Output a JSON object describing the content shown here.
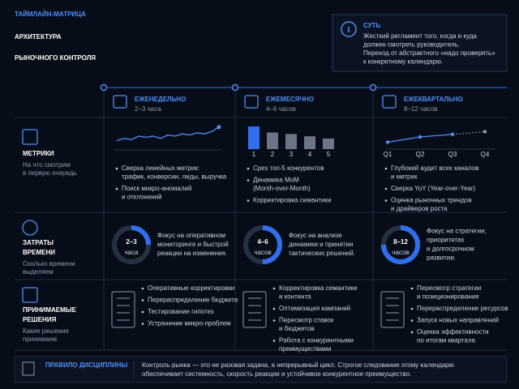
{
  "header": {
    "kicker": "ТАЙМЛАЙН-МАТРИЦА",
    "title_lines": [
      "АРХИТЕКТУРА",
      "РЫНОЧНОГО КОНТРОЛЯ"
    ]
  },
  "summary": {
    "title": "СУТЬ",
    "lines": [
      "Жесткий регламент того, когда и куда",
      "должен смотреть руководитель.",
      "Переход от абстрактного «надо проверять»",
      "к конкретному календарю."
    ]
  },
  "columns": [
    {
      "title": "ЕЖЕНЕДЕЛЬНО",
      "duration": "2–3 часа"
    },
    {
      "title": "ЕЖЕМЕСЯЧНО",
      "duration": "4–6 часов"
    },
    {
      "title": "ЕЖЕКВАРТАЛЬНО",
      "duration": "8–12 часов"
    }
  ],
  "rows": [
    {
      "title_lines": [
        "МЕТРИКИ"
      ],
      "subtitle_lines": [
        "На что смотрим",
        "в первую очередь"
      ]
    },
    {
      "title_lines": [
        "ЗАТРАТЫ",
        "ВРЕМЕНИ"
      ],
      "subtitle_lines": [
        "Сколько времени",
        "выделяем"
      ]
    },
    {
      "title_lines": [
        "ПРИНИМАЕМЫЕ",
        "РЕШЕНИЯ"
      ],
      "subtitle_lines": [
        "Какие решения",
        "принимаем"
      ]
    }
  ],
  "metrics_cells": [
    {
      "chart": {
        "type": "line",
        "values": [
          3,
          4,
          3.5,
          5,
          4.5,
          5,
          4,
          5.5,
          5,
          6,
          5.5,
          6.5,
          6,
          7,
          9
        ],
        "ylim": [
          0,
          10
        ]
      },
      "bullets": [
        [
          "Сверка линейных метрик:",
          "трафик, конверсии, лиды, выручка"
        ],
        [
          "Поиск микро-аномалий",
          "и отклонений"
        ]
      ]
    },
    {
      "chart": {
        "type": "bar",
        "categories": [
          "1",
          "2",
          "3",
          "4",
          "5"
        ],
        "values": [
          30,
          22,
          20,
          17,
          14
        ],
        "ylim": [
          0,
          30
        ]
      },
      "bullets": [
        [
          "Срез топ-5 конкурентов"
        ],
        [
          "Динамика MoM",
          "(Month-over-Month)"
        ],
        [
          "Корректировка семантики"
        ]
      ]
    },
    {
      "chart": {
        "type": "line-forecast",
        "categories": [
          "Q1",
          "Q2",
          "Q3",
          "Q4"
        ],
        "values": [
          2,
          4,
          5,
          6
        ],
        "ylim": [
          0,
          8
        ]
      },
      "bullets": [
        [
          "Глубокий аудит всех каналов",
          "и метрик"
        ],
        [
          "Сверка YoY (Year-over-Year)"
        ],
        [
          "Оценка рыночных трендов",
          "и драйверов роста"
        ]
      ]
    }
  ],
  "time_cells": [
    {
      "gauge_percent": 25,
      "label": "2–3",
      "unit": "часа",
      "lines": [
        "Фокус на оперативном",
        "мониторинге и быстрой",
        "реакции на изменения."
      ]
    },
    {
      "gauge_percent": 50,
      "label": "4–6",
      "unit": "часов",
      "lines": [
        "Фокус на анализе",
        "динамики и принятии",
        "тактических решений."
      ]
    },
    {
      "gauge_percent": 75,
      "label": "8–12",
      "unit": "часов",
      "lines": [
        "Фокус на стратегии,",
        "приоритетах",
        "и долгосрочном",
        "развитии."
      ]
    }
  ],
  "decision_cells": [
    {
      "bullets": [
        [
          "Оперативные корректировки"
        ],
        [
          "Перераспределение бюджета"
        ],
        [
          "Тестирование гипотез"
        ],
        [
          "Устранение микро-проблем"
        ]
      ]
    },
    {
      "bullets": [
        [
          "Корректировка семантики",
          "и контента"
        ],
        [
          "Оптимизация кампаний"
        ],
        [
          "Пересмотр ставок",
          "и бюджетов"
        ],
        [
          "Работа с конкурентными",
          "преимуществами"
        ]
      ]
    },
    {
      "bullets": [
        [
          "Пересмотр стратегии",
          "и позиционирования"
        ],
        [
          "Перераспределение ресурсов"
        ],
        [
          "Запуск новых направлений"
        ],
        [
          "Оценка эффективности",
          "по итогам квартала"
        ]
      ]
    }
  ],
  "footer": {
    "title": "ПРАВИЛО ДИСЦИПЛИНЫ",
    "lines": [
      "Контроль рынка — это не разовая задача, а непрерывный цикл. Строгое следование этому календарю",
      "обеспечивает системность, скорость реакции и устойчивое конкурентное преимущество."
    ]
  }
}
